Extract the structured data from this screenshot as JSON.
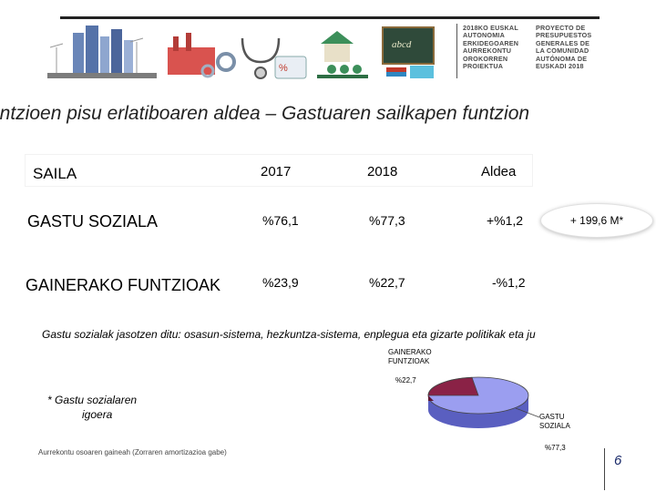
{
  "header": {
    "basque": [
      "2018KO EUSKAL",
      "AUTONOMIA",
      "ERKIDEGOAREN",
      "AURREKONTU",
      "OROKORREN",
      "PROIEKTUA"
    ],
    "spanish": [
      "PROYECTO DE",
      "PRESUPUESTOS",
      "GENERALES DE",
      "LA COMUNIDAD",
      "AUTÓNOMA DE",
      "EUSKADI 2018"
    ],
    "banner_sign": "abcd"
  },
  "title": "untzioen pisu erlatiboaren aldea – Gastuaren sailkapen funtzion",
  "table": {
    "col_sail": "SAILA",
    "col_2017": "2017",
    "col_2018": "2018",
    "col_aldea": "Aldea",
    "rows": [
      {
        "label": "GASTU SOZIALA",
        "v2017": "%76,1",
        "v2018": "%77,3",
        "aldea": "+%1,2"
      },
      {
        "label": "GAINERAKO FUNTZIOAK",
        "v2017": "%23,9",
        "v2018": "%22,7",
        "aldea": "-%1,2"
      }
    ],
    "badge": "+ 199,6 M*"
  },
  "note": "Gastu sozialak jasotzen ditu: osasun-sistema, hezkuntza-sistema, enplegua eta gizarte politikak eta ju",
  "pie": {
    "label_gainerako": [
      "GAINERAKO",
      "FUNTZIOAK"
    ],
    "value_gainerako": "%22,7",
    "label_gastu": [
      "GASTU",
      "SOZIALA"
    ],
    "value_gastu": "%77,3",
    "colors": {
      "gastu": "#9b9ef0",
      "gainerako": "#8a2246"
    }
  },
  "asterisk_note": [
    "* Gastu sozialaren",
    "igoera"
  ],
  "footer": "Aurrekontu osoaren gaineah (Zorraren amortizazioa gabe)",
  "page_number": "6"
}
